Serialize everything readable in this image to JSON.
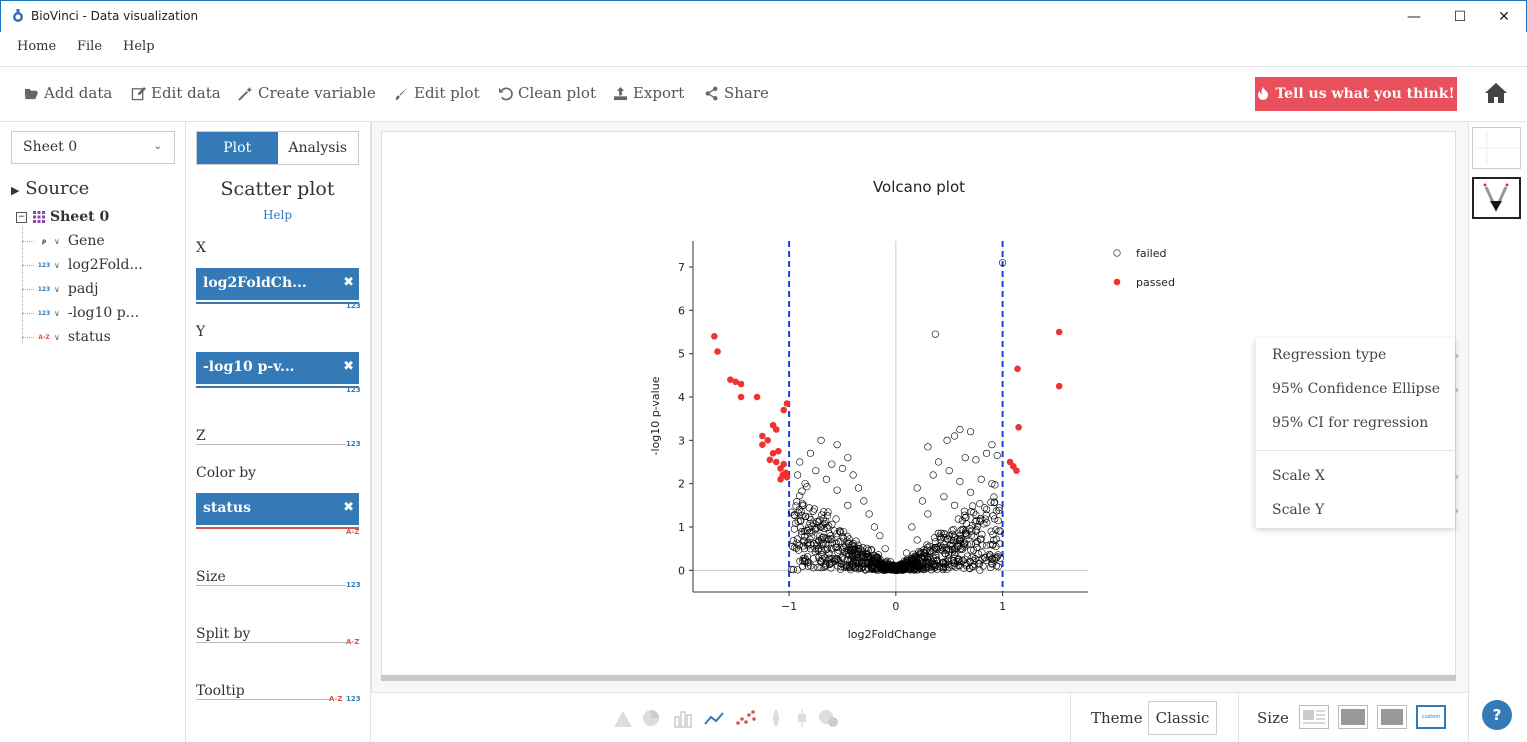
{
  "window": {
    "title": "BioVinci - Data visualization",
    "minimize": "—",
    "maximize": "☐",
    "close": "✕"
  },
  "menu": [
    "Home",
    "File",
    "Help"
  ],
  "toolbar": {
    "add_data": "Add data",
    "edit_data": "Edit data",
    "create_variable": "Create variable",
    "edit_plot": "Edit plot",
    "clean_plot": "Clean plot",
    "export": "Export",
    "share": "Share",
    "feedback": "Tell us what you think!"
  },
  "sidebar": {
    "sheet_select": "Sheet 0",
    "source_label": "Source",
    "sheet_node": "Sheet 0",
    "columns": [
      {
        "name": "Gene",
        "badge": "ρ",
        "badge_color": "#333333"
      },
      {
        "name": "log2Fold...",
        "badge": "123",
        "badge_color": "#337ab7"
      },
      {
        "name": "padj",
        "badge": "123",
        "badge_color": "#337ab7"
      },
      {
        "name": "-log10 p...",
        "badge": "123",
        "badge_color": "#337ab7"
      },
      {
        "name": "status",
        "badge": "A-Z",
        "badge_color": "#d9534f"
      }
    ]
  },
  "mapping": {
    "tab_plot": "Plot",
    "tab_analysis": "Analysis",
    "plot_type": "Scatter plot",
    "help": "Help",
    "x_label": "X",
    "x_value": "log2FoldCh...",
    "x_badge": "123",
    "y_label": "Y",
    "y_value": "-log10 p-v...",
    "y_badge": "123",
    "z_label": "Z",
    "z_badge": "123",
    "color_label": "Color by",
    "color_value": "status",
    "color_badge": "A-Z",
    "size_label": "Size",
    "size_badge": "123",
    "split_label": "Split by",
    "split_badge": "A-Z",
    "tooltip_label": "Tooltip",
    "tooltip_badge_az": "A-Z",
    "tooltip_badge_num": "123",
    "remove": "✖"
  },
  "context_menu": {
    "items": [
      "Regression type",
      "95% Confidence Ellipse",
      "95% CI for regression",
      "Scale X",
      "Scale Y"
    ],
    "arrow": "›"
  },
  "bottom": {
    "theme_label": "Theme",
    "theme_value": "Classic",
    "size_label": "Size",
    "size_custom": "custom",
    "help": "?"
  },
  "chart_data": {
    "type": "scatter",
    "title": "Volcano plot",
    "xlabel": "log2FoldChange",
    "ylabel": "-log10 p-value",
    "xlim": [
      -1.9,
      1.8
    ],
    "ylim": [
      -0.5,
      7.6
    ],
    "x_ticks": [
      -1,
      0,
      1
    ],
    "x_tick_labels": [
      "−1",
      "0",
      "1"
    ],
    "y_ticks": [
      0,
      1,
      2,
      3,
      4,
      5,
      6,
      7
    ],
    "y_tick_labels": [
      "0",
      "1",
      "2",
      "3",
      "4",
      "5",
      "6",
      "7"
    ],
    "threshold_lines_x": [
      -1,
      1
    ],
    "legend_position": "top-right",
    "series": [
      {
        "name": "failed",
        "color": "#000000",
        "marker": "open-circle",
        "points": [
          [
            1.0,
            7.1
          ],
          [
            0.37,
            5.45
          ],
          [
            0.7,
            3.2
          ],
          [
            0.6,
            3.25
          ],
          [
            0.55,
            3.1
          ],
          [
            0.48,
            3.0
          ],
          [
            0.3,
            2.85
          ],
          [
            0.9,
            2.9
          ],
          [
            0.85,
            2.7
          ],
          [
            0.95,
            2.65
          ],
          [
            0.75,
            2.55
          ],
          [
            0.65,
            2.6
          ],
          [
            0.4,
            2.5
          ],
          [
            0.5,
            2.3
          ],
          [
            0.8,
            2.1
          ],
          [
            0.9,
            2.0
          ],
          [
            0.6,
            2.05
          ],
          [
            0.35,
            2.2
          ],
          [
            0.2,
            1.9
          ],
          [
            0.25,
            1.6
          ],
          [
            0.45,
            1.7
          ],
          [
            0.7,
            1.8
          ],
          [
            0.55,
            1.5
          ],
          [
            0.3,
            1.3
          ],
          [
            0.15,
            1.0
          ],
          [
            0.2,
            0.7
          ],
          [
            0.1,
            0.4
          ],
          [
            0.05,
            0.15
          ],
          [
            -0.7,
            3.0
          ],
          [
            -0.55,
            2.9
          ],
          [
            -0.45,
            2.6
          ],
          [
            -0.9,
            2.5
          ],
          [
            -0.8,
            2.7
          ],
          [
            -0.6,
            2.45
          ],
          [
            -0.75,
            2.3
          ],
          [
            -0.5,
            2.35
          ],
          [
            -0.4,
            2.2
          ],
          [
            -0.65,
            2.1
          ],
          [
            -0.85,
            2.0
          ],
          [
            -0.35,
            1.9
          ],
          [
            -0.55,
            1.85
          ],
          [
            -0.3,
            1.6
          ],
          [
            -0.45,
            1.5
          ],
          [
            -0.25,
            1.3
          ],
          [
            -0.2,
            1.0
          ],
          [
            -0.15,
            0.8
          ],
          [
            -0.1,
            0.5
          ],
          [
            -0.05,
            0.2
          ],
          [
            -0.92,
            2.2
          ]
        ]
      },
      {
        "name": "passed",
        "color": "#ee3333",
        "marker": "filled-circle",
        "points": [
          [
            -1.7,
            5.4
          ],
          [
            -1.67,
            5.05
          ],
          [
            -1.55,
            4.4
          ],
          [
            -1.5,
            4.35
          ],
          [
            -1.45,
            4.3
          ],
          [
            -1.3,
            4.0
          ],
          [
            -1.45,
            4.0
          ],
          [
            -1.02,
            3.85
          ],
          [
            -1.05,
            3.7
          ],
          [
            -1.15,
            3.35
          ],
          [
            -1.12,
            3.25
          ],
          [
            -1.25,
            3.1
          ],
          [
            -1.2,
            3.0
          ],
          [
            -1.25,
            2.9
          ],
          [
            -1.1,
            2.75
          ],
          [
            -1.15,
            2.7
          ],
          [
            -1.18,
            2.55
          ],
          [
            -1.12,
            2.5
          ],
          [
            -1.05,
            2.45
          ],
          [
            -1.08,
            2.35
          ],
          [
            -1.03,
            2.25
          ],
          [
            -1.06,
            2.2
          ],
          [
            -1.02,
            2.15
          ],
          [
            -1.08,
            2.1
          ],
          [
            1.53,
            5.5
          ],
          [
            1.14,
            4.65
          ],
          [
            1.53,
            4.25
          ],
          [
            1.15,
            3.3
          ],
          [
            1.07,
            2.5
          ],
          [
            1.1,
            2.4
          ],
          [
            1.13,
            2.3
          ]
        ]
      }
    ]
  }
}
